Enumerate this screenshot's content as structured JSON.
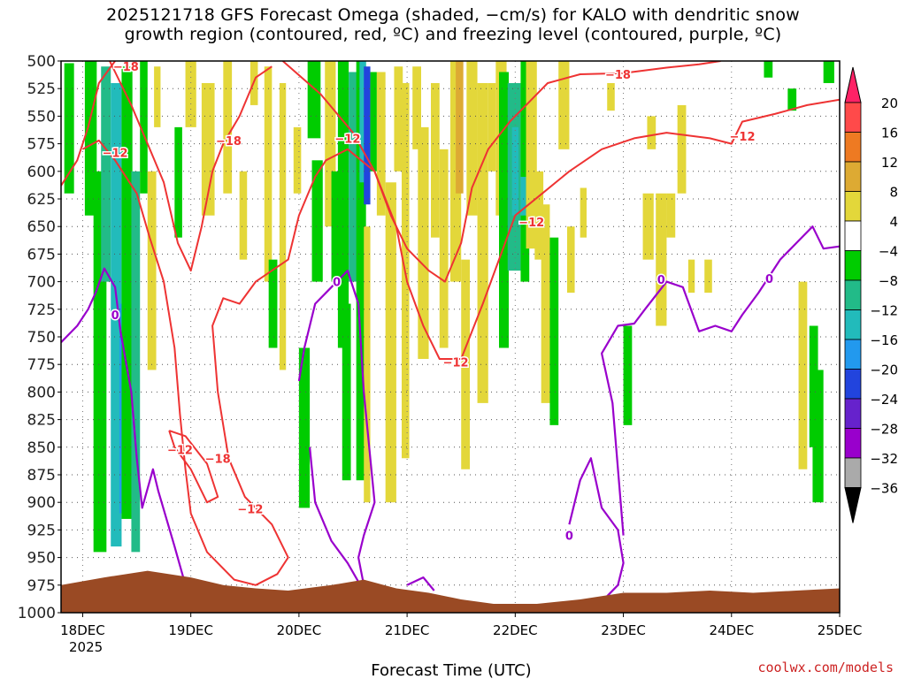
{
  "chart_data": {
    "type": "heatmap",
    "title_line1": "2025121718 GFS Forecast Omega (shaded, −cm/s) for KALO with dendritic snow",
    "title_line2": "growth region (contoured, red, ºC) and freezing level (contoured, purple, ºC)",
    "xlabel": "Forecast Time (UTC)",
    "ylabel": "Pressure (hPa)",
    "credit": "coolwx.com/models",
    "x_ticks": [
      "18DEC",
      "19DEC",
      "20DEC",
      "21DEC",
      "22DEC",
      "23DEC",
      "24DEC",
      "25DEC"
    ],
    "x_year_label": "2025",
    "xlim_days": [
      -0.2,
      7.0
    ],
    "y_ticks": [
      500,
      525,
      550,
      575,
      600,
      625,
      650,
      675,
      700,
      725,
      750,
      775,
      800,
      825,
      850,
      875,
      900,
      925,
      950,
      975,
      1000
    ],
    "ylim": [
      500,
      1000
    ],
    "colorbar": {
      "labels": [
        "20",
        "16",
        "12",
        "8",
        "4",
        "−4",
        "−8",
        "−12",
        "−16",
        "−20",
        "−24",
        "−28",
        "−32",
        "−36"
      ],
      "colors": [
        "#ff2266",
        "#ff4a4a",
        "#ee7a22",
        "#ddaa33",
        "#e3d73a",
        "#ffffff",
        "#00cc00",
        "#22bb88",
        "#22bbbb",
        "#2299ee",
        "#2244dd",
        "#6622cc",
        "#9900cc",
        "#aaaaaa",
        "#000000"
      ]
    },
    "colors": {
      "terrain": "#9a4a24",
      "dgz_contour": "#ee3333",
      "freezing_contour": "#9900cc"
    },
    "contour_labels_red": [
      {
        "text": "−18",
        "day": 0.4,
        "p": 505
      },
      {
        "text": "−18",
        "day": 1.35,
        "p": 572
      },
      {
        "text": "−12",
        "day": 0.3,
        "p": 583
      },
      {
        "text": "−12",
        "day": 2.45,
        "p": 570
      },
      {
        "text": "−18",
        "day": 4.95,
        "p": 512
      },
      {
        "text": "−12",
        "day": 6.1,
        "p": 568
      },
      {
        "text": "−12",
        "day": 3.45,
        "p": 773
      },
      {
        "text": "−12",
        "day": 4.15,
        "p": 646
      },
      {
        "text": "−12",
        "day": 0.9,
        "p": 852
      },
      {
        "text": "−18",
        "day": 1.25,
        "p": 860
      },
      {
        "text": "−12",
        "day": 1.55,
        "p": 906
      }
    ],
    "contour_labels_purple": [
      {
        "text": "0",
        "day": 0.3,
        "p": 730
      },
      {
        "text": "0",
        "day": 2.35,
        "p": 700
      },
      {
        "text": "0",
        "day": 5.35,
        "p": 698
      },
      {
        "text": "0",
        "day": 6.35,
        "p": 697
      },
      {
        "text": "0",
        "day": 4.5,
        "p": 930
      }
    ],
    "shading_cells": [
      {
        "d0": -0.17,
        "d1": -0.08,
        "p0": 502,
        "p1": 620,
        "c": 6
      },
      {
        "d0": 0.02,
        "d1": 0.13,
        "p0": 500,
        "p1": 640,
        "c": 6
      },
      {
        "d0": 0.1,
        "d1": 0.22,
        "p0": 600,
        "p1": 945,
        "c": 6
      },
      {
        "d0": 0.17,
        "d1": 0.26,
        "p0": 505,
        "p1": 700,
        "c": 7
      },
      {
        "d0": 0.26,
        "d1": 0.36,
        "p0": 520,
        "p1": 940,
        "c": 8
      },
      {
        "d0": 0.34,
        "d1": 0.4,
        "p0": 720,
        "p1": 910,
        "c": 9
      },
      {
        "d0": 0.36,
        "d1": 0.46,
        "p0": 505,
        "p1": 915,
        "c": 6
      },
      {
        "d0": 0.45,
        "d1": 0.53,
        "p0": 600,
        "p1": 945,
        "c": 7
      },
      {
        "d0": 0.53,
        "d1": 0.6,
        "p0": 500,
        "p1": 620,
        "c": 6
      },
      {
        "d0": 0.6,
        "d1": 0.68,
        "p0": 600,
        "p1": 780,
        "c": 4
      },
      {
        "d0": 0.66,
        "d1": 0.72,
        "p0": 505,
        "p1": 560,
        "c": 4
      },
      {
        "d0": 0.85,
        "d1": 0.92,
        "p0": 560,
        "p1": 660,
        "c": 6
      },
      {
        "d0": 0.95,
        "d1": 1.05,
        "p0": 500,
        "p1": 560,
        "c": 4
      },
      {
        "d0": 1.1,
        "d1": 1.22,
        "p0": 520,
        "p1": 640,
        "c": 4
      },
      {
        "d0": 1.3,
        "d1": 1.38,
        "p0": 500,
        "p1": 620,
        "c": 4
      },
      {
        "d0": 1.45,
        "d1": 1.52,
        "p0": 600,
        "p1": 680,
        "c": 4
      },
      {
        "d0": 1.55,
        "d1": 1.62,
        "p0": 500,
        "p1": 540,
        "c": 4
      },
      {
        "d0": 1.68,
        "d1": 1.75,
        "p0": 505,
        "p1": 700,
        "c": 4
      },
      {
        "d0": 1.72,
        "d1": 1.8,
        "p0": 680,
        "p1": 760,
        "c": 6
      },
      {
        "d0": 1.82,
        "d1": 1.88,
        "p0": 520,
        "p1": 780,
        "c": 4
      },
      {
        "d0": 1.95,
        "d1": 2.02,
        "p0": 560,
        "p1": 620,
        "c": 4
      },
      {
        "d0": 2.0,
        "d1": 2.1,
        "p0": 760,
        "p1": 905,
        "c": 6
      },
      {
        "d0": 2.08,
        "d1": 2.2,
        "p0": 500,
        "p1": 570,
        "c": 6
      },
      {
        "d0": 2.12,
        "d1": 2.22,
        "p0": 590,
        "p1": 700,
        "c": 6
      },
      {
        "d0": 2.24,
        "d1": 2.34,
        "p0": 500,
        "p1": 650,
        "c": 4
      },
      {
        "d0": 2.3,
        "d1": 2.38,
        "p0": 600,
        "p1": 700,
        "c": 6
      },
      {
        "d0": 2.36,
        "d1": 2.46,
        "p0": 500,
        "p1": 760,
        "c": 6
      },
      {
        "d0": 2.4,
        "d1": 2.48,
        "p0": 720,
        "p1": 880,
        "c": 6
      },
      {
        "d0": 2.46,
        "d1": 2.55,
        "p0": 510,
        "p1": 700,
        "c": 7
      },
      {
        "d0": 2.53,
        "d1": 2.62,
        "p0": 500,
        "p1": 880,
        "c": 6
      },
      {
        "d0": 2.56,
        "d1": 2.62,
        "p0": 500,
        "p1": 610,
        "c": 8
      },
      {
        "d0": 2.6,
        "d1": 2.66,
        "p0": 505,
        "p1": 630,
        "c": 10
      },
      {
        "d0": 2.6,
        "d1": 2.66,
        "p0": 650,
        "p1": 900,
        "c": 4
      },
      {
        "d0": 2.66,
        "d1": 2.72,
        "p0": 510,
        "p1": 600,
        "c": 6
      },
      {
        "d0": 2.72,
        "d1": 2.8,
        "p0": 510,
        "p1": 640,
        "c": 4
      },
      {
        "d0": 2.8,
        "d1": 2.9,
        "p0": 610,
        "p1": 900,
        "c": 4
      },
      {
        "d0": 2.88,
        "d1": 2.96,
        "p0": 505,
        "p1": 600,
        "c": 4
      },
      {
        "d0": 2.95,
        "d1": 3.02,
        "p0": 520,
        "p1": 860,
        "c": 4
      },
      {
        "d0": 3.05,
        "d1": 3.13,
        "p0": 505,
        "p1": 580,
        "c": 4
      },
      {
        "d0": 3.1,
        "d1": 3.2,
        "p0": 560,
        "p1": 770,
        "c": 4
      },
      {
        "d0": 3.22,
        "d1": 3.3,
        "p0": 520,
        "p1": 660,
        "c": 4
      },
      {
        "d0": 3.3,
        "d1": 3.38,
        "p0": 580,
        "p1": 760,
        "c": 4
      },
      {
        "d0": 3.4,
        "d1": 3.5,
        "p0": 500,
        "p1": 700,
        "c": 4
      },
      {
        "d0": 3.45,
        "d1": 3.52,
        "p0": 500,
        "p1": 620,
        "c": 3
      },
      {
        "d0": 3.5,
        "d1": 3.58,
        "p0": 680,
        "p1": 870,
        "c": 4
      },
      {
        "d0": 3.55,
        "d1": 3.65,
        "p0": 500,
        "p1": 640,
        "c": 4
      },
      {
        "d0": 3.65,
        "d1": 3.75,
        "p0": 520,
        "p1": 810,
        "c": 4
      },
      {
        "d0": 3.75,
        "d1": 3.82,
        "p0": 520,
        "p1": 600,
        "c": 4
      },
      {
        "d0": 3.82,
        "d1": 3.92,
        "p0": 500,
        "p1": 640,
        "c": 4
      },
      {
        "d0": 3.85,
        "d1": 3.94,
        "p0": 510,
        "p1": 760,
        "c": 6
      },
      {
        "d0": 3.93,
        "d1": 4.05,
        "p0": 520,
        "p1": 690,
        "c": 7
      },
      {
        "d0": 3.97,
        "d1": 4.03,
        "p0": 560,
        "p1": 640,
        "c": 8
      },
      {
        "d0": 4.05,
        "d1": 4.13,
        "p0": 500,
        "p1": 700,
        "c": 6
      },
      {
        "d0": 4.05,
        "d1": 4.1,
        "p0": 605,
        "p1": 640,
        "c": 8
      },
      {
        "d0": 4.1,
        "d1": 4.2,
        "p0": 500,
        "p1": 670,
        "c": 4
      },
      {
        "d0": 4.18,
        "d1": 4.26,
        "p0": 600,
        "p1": 680,
        "c": 4
      },
      {
        "d0": 4.24,
        "d1": 4.32,
        "p0": 630,
        "p1": 810,
        "c": 4
      },
      {
        "d0": 4.32,
        "d1": 4.4,
        "p0": 660,
        "p1": 830,
        "c": 6
      },
      {
        "d0": 4.4,
        "d1": 4.5,
        "p0": 500,
        "p1": 580,
        "c": 4
      },
      {
        "d0": 4.48,
        "d1": 4.55,
        "p0": 650,
        "p1": 710,
        "c": 4
      },
      {
        "d0": 4.6,
        "d1": 4.66,
        "p0": 615,
        "p1": 660,
        "c": 4
      },
      {
        "d0": 4.85,
        "d1": 4.92,
        "p0": 520,
        "p1": 545,
        "c": 4
      },
      {
        "d0": 5.0,
        "d1": 5.08,
        "p0": 740,
        "p1": 830,
        "c": 6
      },
      {
        "d0": 5.22,
        "d1": 5.3,
        "p0": 550,
        "p1": 580,
        "c": 4
      },
      {
        "d0": 5.18,
        "d1": 5.28,
        "p0": 620,
        "p1": 680,
        "c": 4
      },
      {
        "d0": 5.3,
        "d1": 5.4,
        "p0": 620,
        "p1": 740,
        "c": 4
      },
      {
        "d0": 5.4,
        "d1": 5.48,
        "p0": 620,
        "p1": 660,
        "c": 4
      },
      {
        "d0": 5.5,
        "d1": 5.58,
        "p0": 540,
        "p1": 620,
        "c": 4
      },
      {
        "d0": 5.6,
        "d1": 5.66,
        "p0": 680,
        "p1": 710,
        "c": 4
      },
      {
        "d0": 5.75,
        "d1": 5.82,
        "p0": 680,
        "p1": 710,
        "c": 4
      },
      {
        "d0": 6.3,
        "d1": 6.38,
        "p0": 500,
        "p1": 515,
        "c": 6
      },
      {
        "d0": 6.52,
        "d1": 6.6,
        "p0": 525,
        "p1": 545,
        "c": 6
      },
      {
        "d0": 6.62,
        "d1": 6.7,
        "p0": 700,
        "p1": 870,
        "c": 4
      },
      {
        "d0": 6.72,
        "d1": 6.8,
        "p0": 740,
        "p1": 850,
        "c": 6
      },
      {
        "d0": 6.75,
        "d1": 6.85,
        "p0": 780,
        "p1": 900,
        "c": 6
      },
      {
        "d0": 6.85,
        "d1": 6.95,
        "p0": 500,
        "p1": 520,
        "c": 6
      }
    ],
    "dgz_contours": [
      [
        [
          -0.2,
          613
        ],
        [
          -0.05,
          590
        ],
        [
          0.05,
          560
        ],
        [
          0.15,
          520
        ],
        [
          0.3,
          500
        ]
      ],
      [
        [
          0.25,
          500
        ],
        [
          0.45,
          540
        ],
        [
          0.6,
          575
        ],
        [
          0.75,
          610
        ],
        [
          0.88,
          665
        ],
        [
          1.0,
          690
        ],
        [
          1.1,
          650
        ],
        [
          1.2,
          600
        ],
        [
          1.3,
          575
        ],
        [
          1.45,
          550
        ],
        [
          1.6,
          515
        ],
        [
          1.75,
          505
        ]
      ],
      [
        [
          1.85,
          500
        ],
        [
          2.2,
          530
        ],
        [
          2.5,
          565
        ],
        [
          2.7,
          600
        ],
        [
          2.85,
          640
        ],
        [
          3.0,
          670
        ],
        [
          3.2,
          690
        ],
        [
          3.35,
          700
        ],
        [
          3.5,
          665
        ],
        [
          3.6,
          615
        ],
        [
          3.75,
          580
        ],
        [
          3.95,
          555
        ],
        [
          4.1,
          540
        ],
        [
          4.3,
          520
        ],
        [
          4.6,
          512
        ],
        [
          5.0,
          511
        ],
        [
          5.4,
          506
        ],
        [
          5.7,
          503
        ],
        [
          5.9,
          500
        ]
      ],
      [
        [
          0.0,
          580
        ],
        [
          0.15,
          572
        ],
        [
          0.3,
          590
        ],
        [
          0.5,
          620
        ],
        [
          0.62,
          660
        ],
        [
          0.75,
          700
        ],
        [
          0.85,
          760
        ],
        [
          0.9,
          820
        ],
        [
          0.95,
          870
        ],
        [
          1.0,
          910
        ],
        [
          1.15,
          945
        ],
        [
          1.4,
          970
        ],
        [
          1.6,
          975
        ],
        [
          1.8,
          965
        ],
        [
          1.9,
          950
        ],
        [
          1.75,
          920
        ],
        [
          1.5,
          895
        ],
        [
          1.35,
          860
        ],
        [
          1.25,
          800
        ],
        [
          1.2,
          740
        ],
        [
          1.3,
          715
        ],
        [
          1.45,
          720
        ],
        [
          1.6,
          700
        ],
        [
          1.75,
          690
        ],
        [
          1.9,
          680
        ],
        [
          2.0,
          640
        ],
        [
          2.15,
          605
        ],
        [
          2.25,
          590
        ],
        [
          2.45,
          580
        ],
        [
          2.7,
          600
        ],
        [
          2.9,
          650
        ],
        [
          3.0,
          700
        ],
        [
          3.15,
          740
        ],
        [
          3.3,
          770
        ],
        [
          3.5,
          770
        ],
        [
          3.7,
          720
        ],
        [
          3.85,
          680
        ],
        [
          4.0,
          640
        ],
        [
          4.25,
          620
        ],
        [
          4.5,
          600
        ],
        [
          4.8,
          580
        ],
        [
          5.1,
          570
        ],
        [
          5.4,
          565
        ],
        [
          5.8,
          570
        ],
        [
          6.0,
          575
        ],
        [
          6.1,
          555
        ],
        [
          6.4,
          548
        ],
        [
          6.7,
          540
        ],
        [
          7.0,
          535
        ]
      ],
      [
        [
          0.8,
          835
        ],
        [
          0.95,
          840
        ],
        [
          1.15,
          865
        ],
        [
          1.25,
          895
        ],
        [
          1.15,
          900
        ],
        [
          1.0,
          870
        ],
        [
          0.85,
          850
        ],
        [
          0.8,
          835
        ]
      ]
    ],
    "freezing_contours": [
      [
        [
          -0.2,
          755
        ],
        [
          -0.05,
          740
        ],
        [
          0.05,
          725
        ],
        [
          0.12,
          710
        ],
        [
          0.2,
          688
        ],
        [
          0.3,
          705
        ],
        [
          0.35,
          745
        ],
        [
          0.45,
          800
        ],
        [
          0.5,
          860
        ],
        [
          0.55,
          905
        ],
        [
          0.65,
          870
        ],
        [
          0.7,
          890
        ],
        [
          0.85,
          940
        ],
        [
          0.95,
          975
        ]
      ],
      [
        [
          2.0,
          790
        ],
        [
          2.05,
          760
        ],
        [
          2.15,
          720
        ],
        [
          2.3,
          705
        ],
        [
          2.45,
          690
        ],
        [
          2.55,
          720
        ],
        [
          2.6,
          800
        ],
        [
          2.65,
          850
        ],
        [
          2.7,
          900
        ],
        [
          2.6,
          930
        ],
        [
          2.55,
          950
        ],
        [
          2.6,
          975
        ]
      ],
      [
        [
          2.1,
          850
        ],
        [
          2.15,
          900
        ],
        [
          2.3,
          935
        ],
        [
          2.45,
          955
        ],
        [
          2.55,
          972
        ]
      ],
      [
        [
          3.0,
          975
        ],
        [
          3.15,
          968
        ],
        [
          3.25,
          980
        ]
      ],
      [
        [
          4.5,
          920
        ],
        [
          4.6,
          880
        ],
        [
          4.7,
          860
        ],
        [
          4.8,
          905
        ],
        [
          4.95,
          925
        ],
        [
          5.0,
          955
        ],
        [
          4.95,
          975
        ],
        [
          4.85,
          985
        ]
      ],
      [
        [
          5.0,
          930
        ],
        [
          4.9,
          810
        ],
        [
          4.8,
          765
        ],
        [
          4.95,
          740
        ],
        [
          5.1,
          738
        ],
        [
          5.2,
          725
        ],
        [
          5.4,
          700
        ],
        [
          5.55,
          705
        ],
        [
          5.7,
          745
        ],
        [
          5.85,
          740
        ],
        [
          6.0,
          745
        ],
        [
          6.1,
          730
        ],
        [
          6.25,
          710
        ],
        [
          6.45,
          680
        ],
        [
          6.6,
          665
        ],
        [
          6.75,
          650
        ],
        [
          6.85,
          670
        ],
        [
          7.0,
          668
        ]
      ]
    ]
  }
}
